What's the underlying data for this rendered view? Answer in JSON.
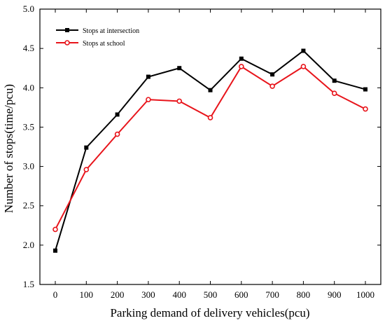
{
  "chart_data": {
    "type": "line",
    "xlabel": "Parking demand of delivery vehicles(pcu)",
    "ylabel": "Number of stops(time/pcu)",
    "x": [
      0,
      100,
      200,
      300,
      400,
      500,
      600,
      700,
      800,
      900,
      1000
    ],
    "xticks": [
      "0",
      "100",
      "200",
      "300",
      "400",
      "500",
      "600",
      "700",
      "800",
      "900",
      "1000"
    ],
    "yticks": [
      "1.5",
      "2.0",
      "2.5",
      "3.0",
      "3.5",
      "4.0",
      "4.5",
      "5.0"
    ],
    "ylim": [
      1.5,
      5.0
    ],
    "grid": false,
    "legend_position": "top-left",
    "series": [
      {
        "name": "Stops  at intersection",
        "color": "#000000",
        "marker": "square",
        "values": [
          1.93,
          3.24,
          3.66,
          4.14,
          4.25,
          3.97,
          4.37,
          4.17,
          4.47,
          4.09,
          3.98
        ]
      },
      {
        "name": "Stops at school",
        "color": "#e8141b",
        "marker": "circle",
        "values": [
          2.2,
          2.96,
          3.41,
          3.85,
          3.83,
          3.62,
          4.27,
          4.02,
          4.27,
          3.93,
          3.73
        ]
      }
    ]
  }
}
